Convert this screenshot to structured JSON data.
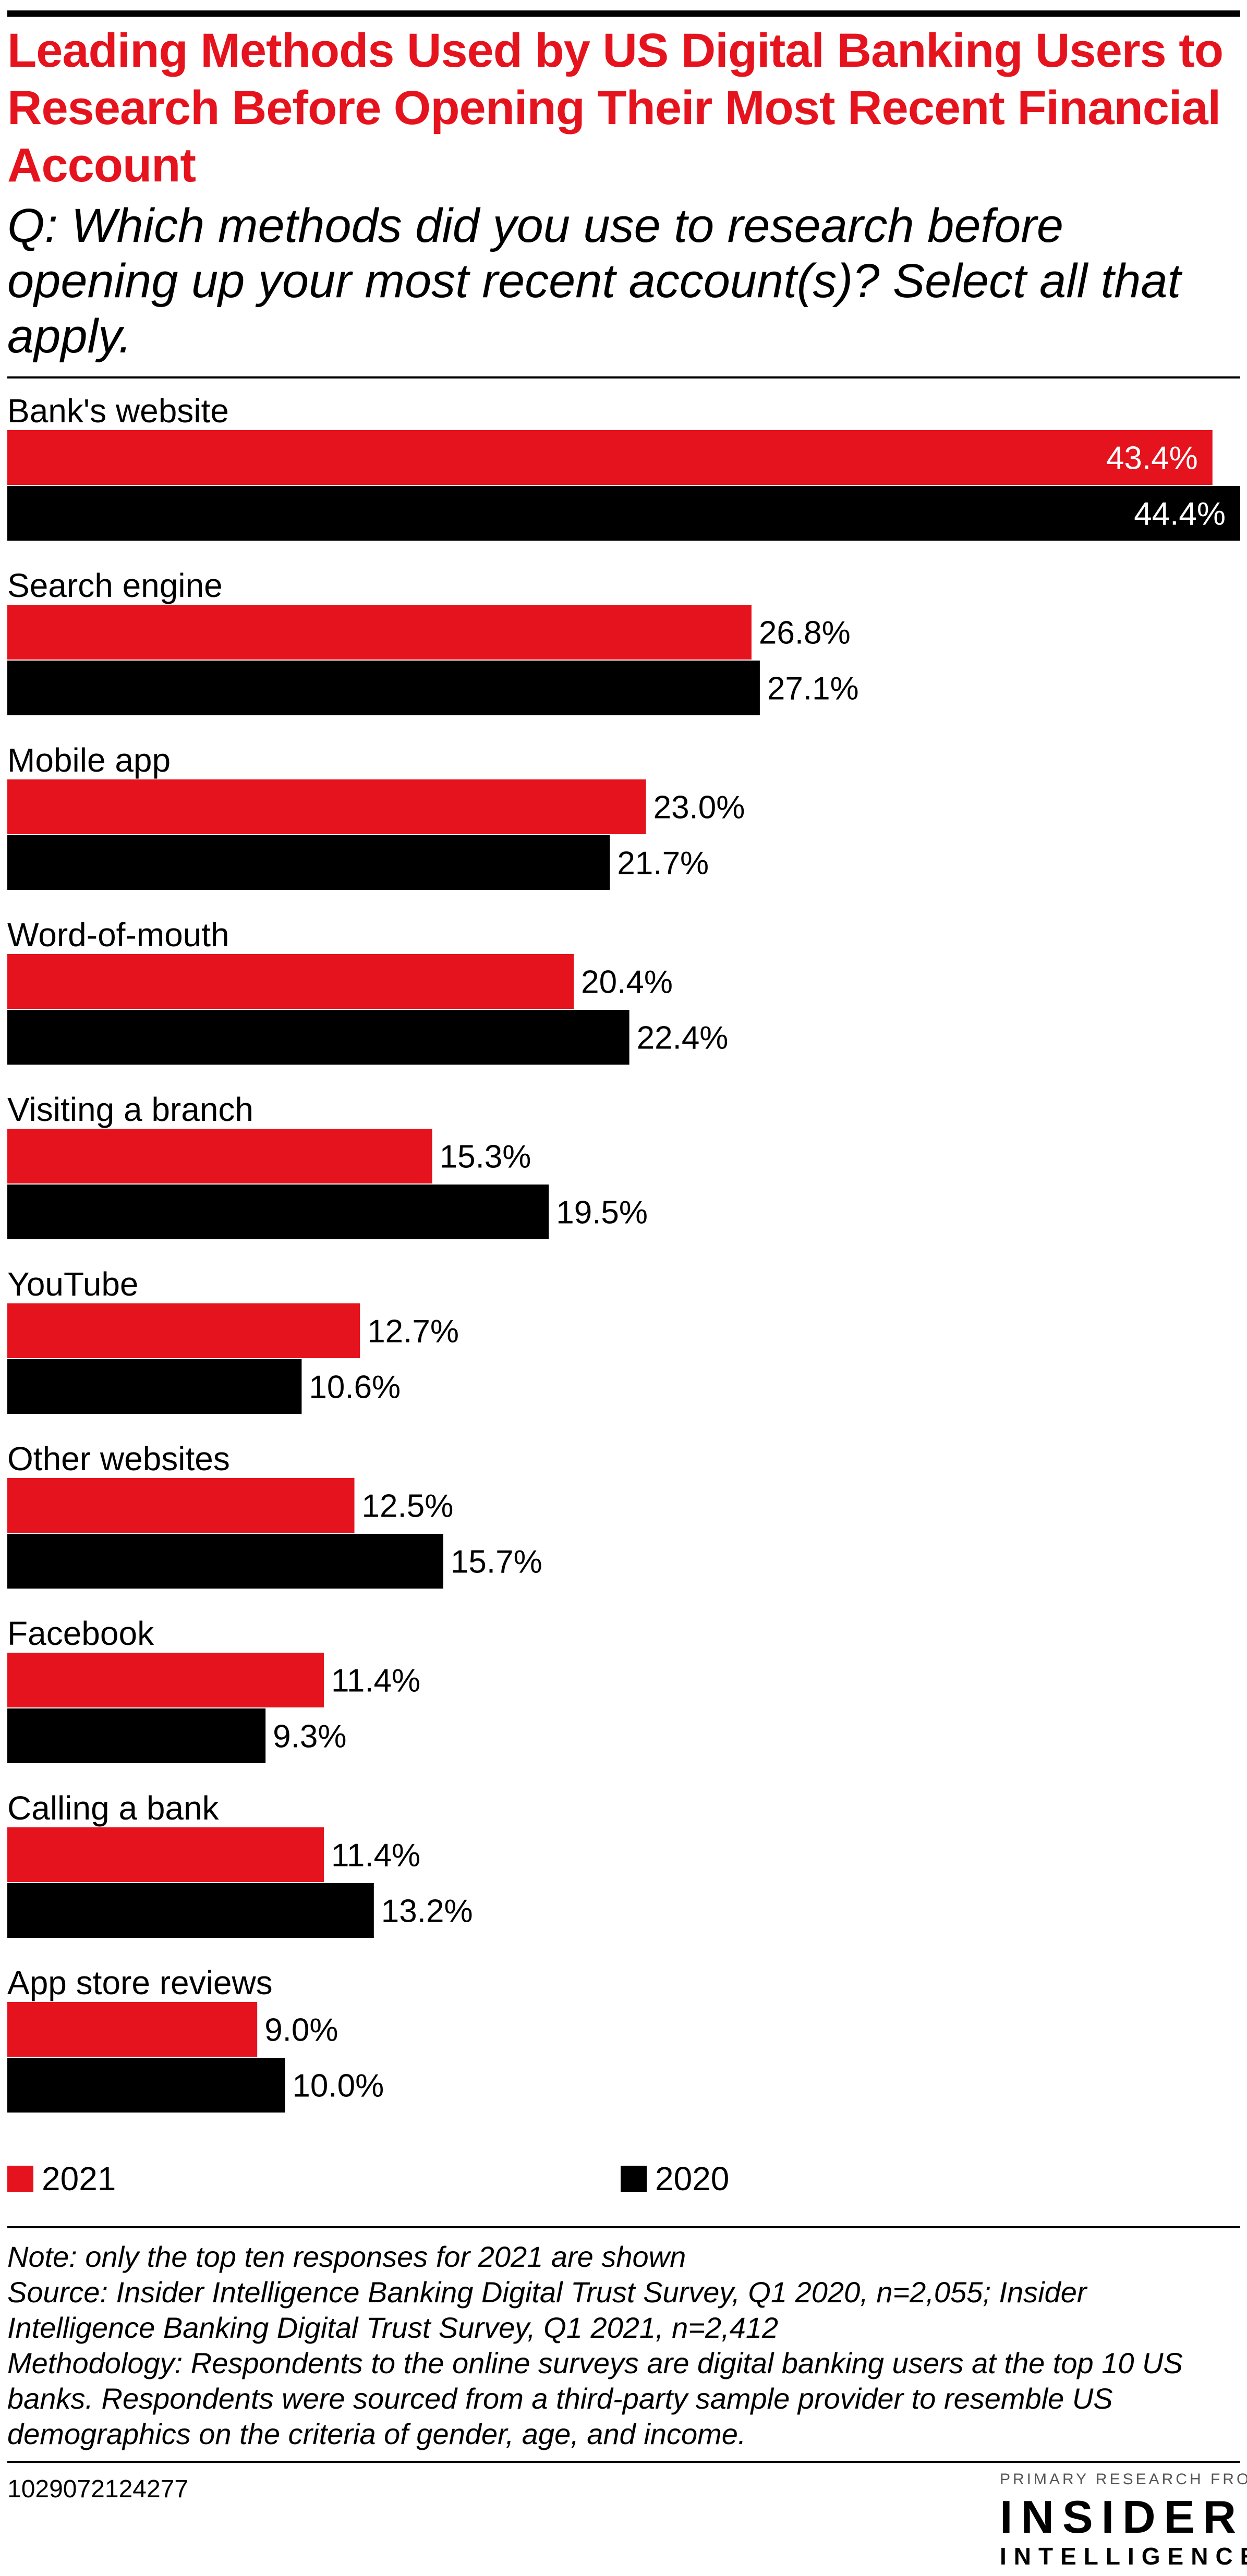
{
  "header": {
    "title": "Leading Methods Used by US Digital Banking Users to Research Before Opening Their Most Recent Financial Account",
    "subtitle": "Q: Which methods did you use to research before opening up your most recent account(s)? Select all that apply."
  },
  "colors": {
    "series_2021": "#e5131d",
    "series_2020": "#000000",
    "title": "#e5131d"
  },
  "chart_data": {
    "type": "bar",
    "orientation": "horizontal",
    "title": "Leading Methods Used by US Digital Banking Users to Research Before Opening Their Most Recent Financial Account",
    "categories": [
      "Bank's website",
      "Search engine",
      "Mobile app",
      "Word-of-mouth",
      "Visiting a branch",
      "YouTube",
      "Other websites",
      "Facebook",
      "Calling a bank",
      "App store reviews"
    ],
    "series": [
      {
        "name": "2021",
        "values": [
          43.4,
          26.8,
          23.0,
          20.4,
          15.3,
          12.7,
          12.5,
          11.4,
          11.4,
          9.0
        ],
        "labels": [
          "43.4%",
          "26.8%",
          "23.0%",
          "20.4%",
          "15.3%",
          "12.7%",
          "12.5%",
          "11.4%",
          "11.4%",
          "9.0%"
        ],
        "color": "#e5131d"
      },
      {
        "name": "2020",
        "values": [
          44.4,
          27.1,
          21.7,
          22.4,
          19.5,
          10.6,
          15.7,
          9.3,
          13.2,
          10.0
        ],
        "labels": [
          "44.4%",
          "27.1%",
          "21.7%",
          "22.4%",
          "19.5%",
          "10.6%",
          "15.7%",
          "9.3%",
          "13.2%",
          "10.0%"
        ],
        "color": "#000000"
      }
    ],
    "xlim": [
      0,
      44.4
    ],
    "grid": false,
    "legend": "bottom"
  },
  "legend": {
    "items": [
      {
        "label": "2021"
      },
      {
        "label": "2020"
      }
    ]
  },
  "footer": {
    "note": "Note: only the top ten responses for 2021 are shown",
    "source": "Source: Insider Intelligence Banking Digital Trust Survey, Q1 2020, n=2,055; Insider Intelligence Banking Digital Trust Survey, Q1 2021, n=2,412",
    "methodology": "Methodology: Respondents to the online surveys are digital banking users at the top 10 US banks. Respondents were sourced from a third-party sample provider to resemble US demographics on the criteria of gender, age, and income.",
    "chart_id": "1029072124277",
    "brand_kicker": "PRIMARY RESEARCH FROM",
    "brand_name1": "INSIDER",
    "brand_name2": "INTELLIGENCE"
  }
}
